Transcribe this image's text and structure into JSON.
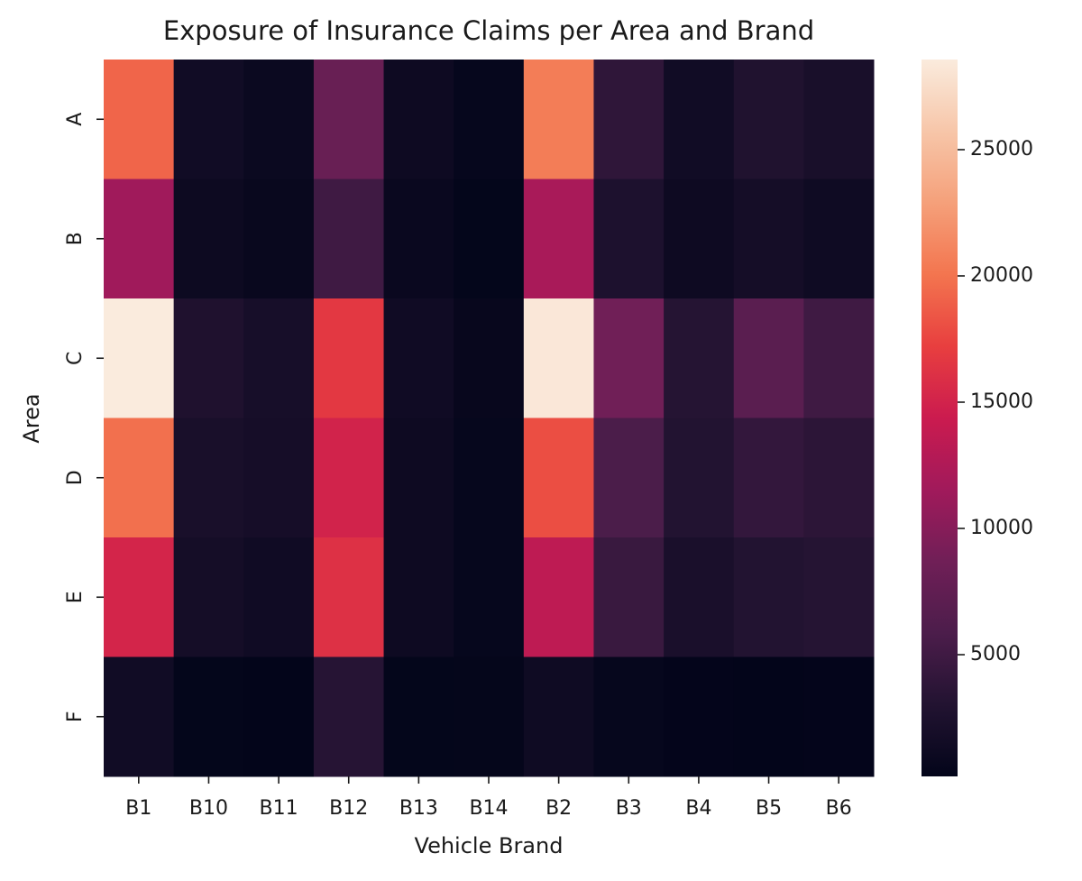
{
  "chart_data": {
    "type": "heatmap",
    "title": "Exposure of Insurance Claims per Area and Brand",
    "x_label": "Vehicle Brand",
    "y_label": "Area",
    "x": [
      "B1",
      "B10",
      "B11",
      "B12",
      "B13",
      "B14",
      "B2",
      "B3",
      "B4",
      "B5",
      "B6"
    ],
    "y": [
      "A",
      "B",
      "C",
      "D",
      "E",
      "F"
    ],
    "values": [
      [
        19200,
        1500,
        900,
        8100,
        1200,
        500,
        20600,
        3900,
        1500,
        2800,
        2200
      ],
      [
        11500,
        1100,
        700,
        5000,
        800,
        300,
        12100,
        2600,
        1200,
        1800,
        1300
      ],
      [
        28570,
        2700,
        2000,
        16700,
        1400,
        600,
        28300,
        8700,
        3200,
        7000,
        5000
      ],
      [
        19800,
        2200,
        1900,
        15000,
        1200,
        500,
        18000,
        5800,
        3000,
        4200,
        3700
      ],
      [
        15200,
        1800,
        1400,
        16100,
        1200,
        500,
        13500,
        4600,
        2300,
        3000,
        3200
      ],
      [
        1500,
        300,
        200,
        3300,
        300,
        350,
        1300,
        500,
        250,
        180,
        250
      ]
    ],
    "colormap": "rocket",
    "zlim": [
      180,
      28570
    ],
    "colorbar_ticks": [
      5000,
      10000,
      15000,
      20000,
      25000
    ]
  }
}
